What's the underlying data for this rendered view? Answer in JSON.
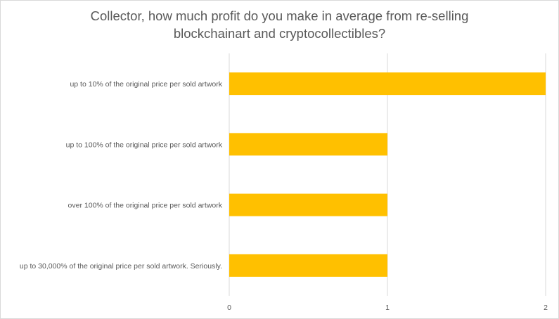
{
  "chart_data": {
    "type": "bar",
    "orientation": "horizontal",
    "title_lines": [
      "Collector, how much profit do you make in average from re-selling",
      "blockchainart and cryptocollectibles?"
    ],
    "categories": [
      "up to 10% of the original price per sold artwork",
      "up to 100% of the original price per sold artwork",
      "over 100% of the original price per sold artwork",
      "up to 30,000% of the original price per sold artwork. Seriously."
    ],
    "values": [
      2,
      1,
      1,
      1
    ],
    "xlim": [
      0,
      2
    ],
    "xticks": [
      "0",
      "1",
      "2"
    ],
    "xlabel": "",
    "ylabel": "",
    "grid": "vertical",
    "legend": "none",
    "bar_color": "#FFC000",
    "grid_color": "#d9d9d9",
    "text_color": "#595959"
  }
}
